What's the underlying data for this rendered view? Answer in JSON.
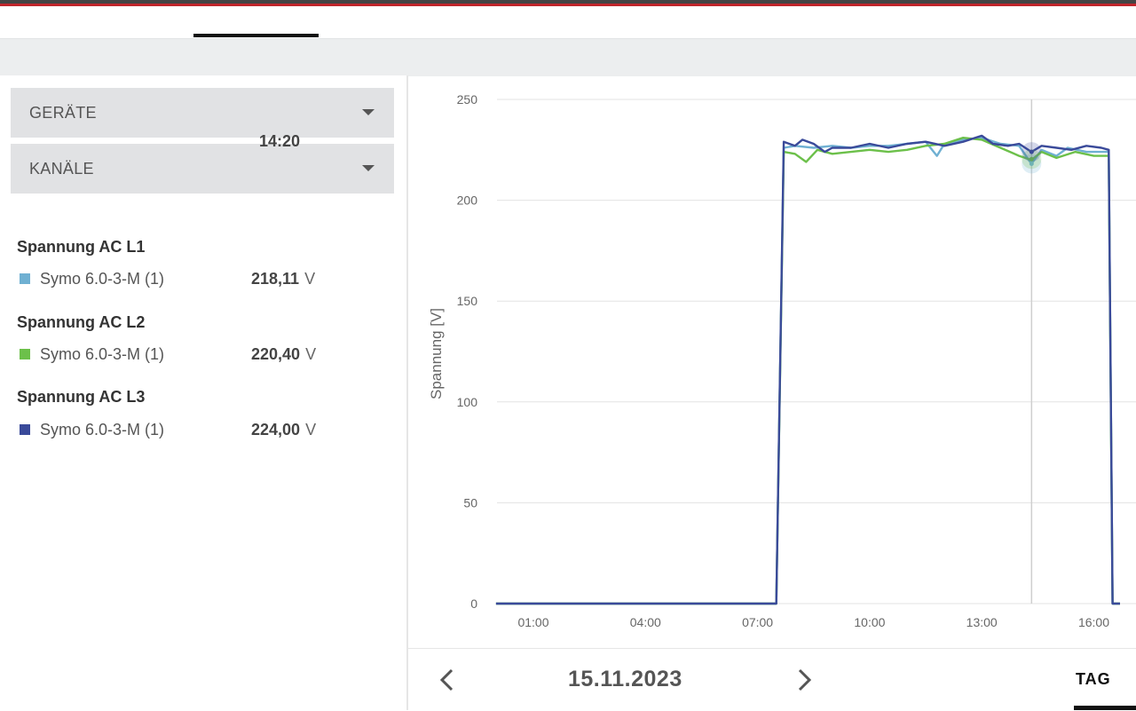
{
  "sidebar": {
    "devices_dropdown": "GERÄTE",
    "channels_dropdown": "KANÄLE",
    "time": "14:20",
    "groups": [
      {
        "title": "Spannung AC L1",
        "device": "Symo 6.0-3-M (1)",
        "value": "218,11",
        "unit": "V",
        "color": "#6fb0d2"
      },
      {
        "title": "Spannung AC L2",
        "device": "Symo 6.0-3-M (1)",
        "value": "220,40",
        "unit": "V",
        "color": "#6cc04a"
      },
      {
        "title": "Spannung AC L3",
        "device": "Symo 6.0-3-M (1)",
        "value": "224,00",
        "unit": "V",
        "color": "#3a4a9a"
      }
    ]
  },
  "chart_data": {
    "type": "line",
    "ylabel": "Spannung [V]",
    "ylim": [
      0,
      250
    ],
    "yticks": [
      0,
      50,
      100,
      150,
      200,
      250
    ],
    "xlim_hours": [
      0,
      16.7
    ],
    "xticks": [
      "01:00",
      "04:00",
      "07:00",
      "10:00",
      "13:00",
      "16:00"
    ],
    "cursor_time": "14:20",
    "series": [
      {
        "name": "Spannung AC L1",
        "color": "#6fb0d2",
        "points": [
          [
            0,
            0
          ],
          [
            7.1,
            0
          ],
          [
            7.5,
            0
          ],
          [
            7.7,
            226
          ],
          [
            8,
            227
          ],
          [
            8.5,
            226
          ],
          [
            9,
            227
          ],
          [
            9.5,
            226
          ],
          [
            10,
            227
          ],
          [
            10.5,
            227
          ],
          [
            11,
            228
          ],
          [
            11.5,
            229
          ],
          [
            11.8,
            222
          ],
          [
            12,
            228
          ],
          [
            12.5,
            230
          ],
          [
            13,
            231
          ],
          [
            13.5,
            228
          ],
          [
            14,
            227
          ],
          [
            14.33,
            218
          ],
          [
            14.6,
            225
          ],
          [
            15,
            222
          ],
          [
            15.3,
            226
          ],
          [
            15.8,
            224
          ],
          [
            16.3,
            224
          ],
          [
            16.4,
            224
          ],
          [
            16.5,
            0
          ],
          [
            16.7,
            0
          ]
        ]
      },
      {
        "name": "Spannung AC L2",
        "color": "#6cc04a",
        "points": [
          [
            0,
            0
          ],
          [
            7.1,
            0
          ],
          [
            7.5,
            0
          ],
          [
            7.7,
            224
          ],
          [
            8,
            223
          ],
          [
            8.3,
            219
          ],
          [
            8.6,
            225
          ],
          [
            9,
            223
          ],
          [
            9.5,
            224
          ],
          [
            10,
            225
          ],
          [
            10.5,
            224
          ],
          [
            11,
            225
          ],
          [
            11.5,
            227
          ],
          [
            12,
            228
          ],
          [
            12.5,
            231
          ],
          [
            13,
            230
          ],
          [
            13.5,
            226
          ],
          [
            14,
            222
          ],
          [
            14.33,
            220
          ],
          [
            14.6,
            224
          ],
          [
            15,
            221
          ],
          [
            15.5,
            224
          ],
          [
            16,
            222
          ],
          [
            16.4,
            222
          ],
          [
            16.5,
            0
          ],
          [
            16.7,
            0
          ]
        ]
      },
      {
        "name": "Spannung AC L3",
        "color": "#3a4a9a",
        "points": [
          [
            0,
            0
          ],
          [
            7.1,
            0
          ],
          [
            7.5,
            0
          ],
          [
            7.7,
            229
          ],
          [
            8,
            227
          ],
          [
            8.2,
            230
          ],
          [
            8.5,
            228
          ],
          [
            8.8,
            224
          ],
          [
            9,
            226
          ],
          [
            9.5,
            226
          ],
          [
            10,
            228
          ],
          [
            10.5,
            226
          ],
          [
            11,
            228
          ],
          [
            11.5,
            229
          ],
          [
            12,
            227
          ],
          [
            12.5,
            229
          ],
          [
            13,
            232
          ],
          [
            13.3,
            228
          ],
          [
            13.7,
            227
          ],
          [
            14,
            228
          ],
          [
            14.33,
            224
          ],
          [
            14.6,
            227
          ],
          [
            15,
            226
          ],
          [
            15.4,
            225
          ],
          [
            15.8,
            227
          ],
          [
            16.2,
            226
          ],
          [
            16.4,
            225
          ],
          [
            16.5,
            0
          ],
          [
            16.7,
            0
          ]
        ]
      }
    ]
  },
  "footer": {
    "date": "15.11.2023",
    "tab": "TAG"
  }
}
